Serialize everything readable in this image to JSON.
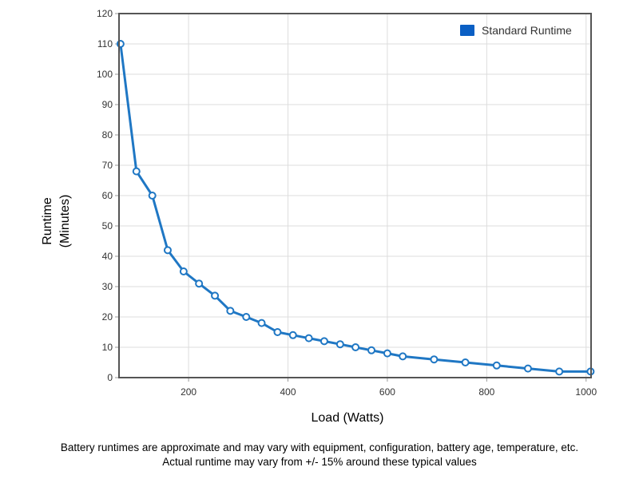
{
  "colors": {
    "series": "#1f77c4",
    "legend_swatch": "#0a5fc4",
    "grid": "#dddddd",
    "frame": "#555555"
  },
  "chart_data": {
    "type": "line",
    "title": "",
    "xlabel": "Load (Watts)",
    "ylabel": [
      "Runtime",
      "(Minutes)"
    ],
    "xlim": [
      60,
      1010
    ],
    "ylim": [
      0,
      120
    ],
    "xticks": [
      200,
      400,
      600,
      800,
      1000
    ],
    "yticks": [
      0,
      10,
      20,
      30,
      40,
      50,
      60,
      70,
      80,
      90,
      100,
      110,
      120
    ],
    "grid": true,
    "legend_position": "top-right",
    "series": [
      {
        "name": "Standard Runtime",
        "x": [
          63,
          95,
          127,
          158,
          190,
          221,
          253,
          284,
          316,
          347,
          379,
          410,
          442,
          473,
          505,
          536,
          568,
          600,
          631,
          694,
          757,
          820,
          883,
          946,
          1009
        ],
        "y": [
          110,
          68,
          60,
          42,
          35,
          31,
          27,
          22,
          20,
          18,
          15,
          14,
          13,
          12,
          11,
          10,
          9,
          8,
          7,
          6,
          5,
          4,
          3,
          2,
          2
        ]
      }
    ]
  },
  "notes": {
    "line1": "Battery runtimes are approximate and may vary with equipment, configuration, battery age, temperature, etc.",
    "line2": "Actual runtime may vary from +/- 15% around these typical values"
  }
}
